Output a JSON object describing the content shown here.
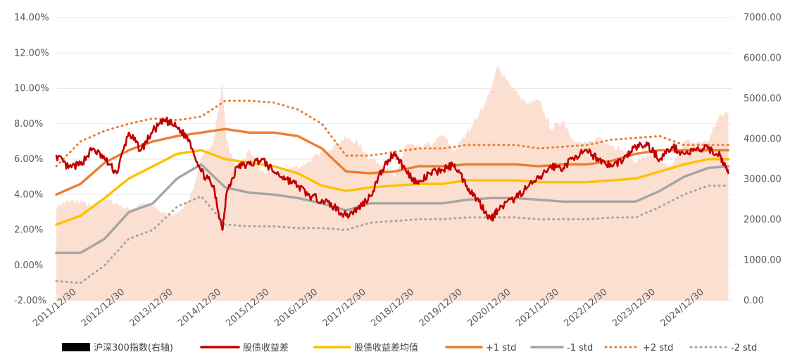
{
  "chart_data": {
    "type": "line",
    "title": "",
    "xlabel": "",
    "ylabel_left": "",
    "ylabel_right": "",
    "left_axis": {
      "ticks": [
        "14.00%",
        "12.00%",
        "10.00%",
        "8.00%",
        "6.00%",
        "4.00%",
        "2.00%",
        "0.00%",
        "-2.00%"
      ],
      "ylim": [
        -2,
        14
      ]
    },
    "right_axis": {
      "ticks": [
        "7000.00",
        "6000.00",
        "5000.00",
        "4000.00",
        "3000.00",
        "2000.00",
        "1000.00",
        "0.00"
      ],
      "ylim": [
        0,
        7000
      ]
    },
    "x_ticks": [
      "2011/12/30",
      "2012/12/30",
      "2013/12/30",
      "2014/12/30",
      "2015/12/30",
      "2016/12/30",
      "2017/12/30",
      "2018/12/30",
      "2019/12/30",
      "2020/12/30",
      "2021/12/30",
      "2022/12/30",
      "2023/12/30",
      "2024/12/30"
    ],
    "x_range": [
      "2011/12/30",
      "2025/12/30"
    ],
    "grid": true,
    "legend_position": "bottom",
    "colors": {
      "index_area": "#fbe0d2",
      "spread": "#c00000",
      "mean": "#ffc000",
      "plus1": "#ed7d31",
      "minus1": "#a5a5a5",
      "plus2": "#ed7d31",
      "minus2": "#a5a5a5",
      "grid": "#e8e8e8"
    },
    "series": [
      {
        "name": "沪深300指数(右轴)",
        "key": "index",
        "axis": "right",
        "style": "area",
        "x": [
          "2011/12/30",
          "2012/03/30",
          "2012/06/30",
          "2012/09/30",
          "2012/12/30",
          "2013/03/30",
          "2013/06/30",
          "2013/09/30",
          "2013/12/30",
          "2014/03/30",
          "2014/06/30",
          "2014/09/30",
          "2014/12/30",
          "2015/03/30",
          "2015/06/08",
          "2015/07/08",
          "2015/09/30",
          "2015/12/30",
          "2016/03/30",
          "2016/06/30",
          "2016/09/30",
          "2016/12/30",
          "2017/03/30",
          "2017/06/30",
          "2017/09/30",
          "2017/12/30",
          "2018/03/30",
          "2018/06/30",
          "2018/09/30",
          "2018/12/30",
          "2019/03/30",
          "2019/06/30",
          "2019/09/30",
          "2019/12/30",
          "2020/03/30",
          "2020/06/30",
          "2020/09/30",
          "2020/12/30",
          "2021/02/18",
          "2021/06/30",
          "2021/09/30",
          "2021/12/30",
          "2022/03/30",
          "2022/06/30",
          "2022/09/30",
          "2022/12/30",
          "2023/03/30",
          "2023/06/30",
          "2023/09/30",
          "2023/12/30",
          "2024/03/30",
          "2024/06/30",
          "2024/09/30",
          "2024/12/30",
          "2025/03/30",
          "2025/06/30",
          "2025/09/30",
          "2025/11/30"
        ],
        "values": [
          2340,
          2450,
          2460,
          2300,
          2520,
          2400,
          2250,
          2400,
          2330,
          2150,
          2170,
          2440,
          3530,
          3880,
          5360,
          4000,
          3200,
          3730,
          3200,
          3150,
          3250,
          3310,
          3450,
          3660,
          3840,
          4030,
          3900,
          3500,
          3400,
          3010,
          3850,
          3800,
          3850,
          4100,
          3700,
          4160,
          4600,
          5210,
          5800,
          5200,
          4850,
          4940,
          4250,
          4450,
          3900,
          3870,
          4050,
          3850,
          3700,
          3430,
          3600,
          3450,
          3300,
          3930,
          3900,
          3950,
          4600,
          4650
        ]
      },
      {
        "name": "股债收益差",
        "key": "spread",
        "axis": "left",
        "style": "solid-rough",
        "x": [
          "2011/12/30",
          "2012/03/30",
          "2012/06/30",
          "2012/09/30",
          "2012/12/30",
          "2013/03/30",
          "2013/06/30",
          "2013/09/30",
          "2013/12/30",
          "2014/03/30",
          "2014/06/30",
          "2014/09/30",
          "2014/12/30",
          "2015/03/30",
          "2015/06/08",
          "2015/07/08",
          "2015/09/30",
          "2015/12/30",
          "2016/03/30",
          "2016/06/30",
          "2016/09/30",
          "2016/12/30",
          "2017/03/30",
          "2017/06/30",
          "2017/09/30",
          "2017/12/30",
          "2018/03/30",
          "2018/06/30",
          "2018/09/30",
          "2018/12/30",
          "2019/03/30",
          "2019/06/30",
          "2019/09/30",
          "2019/12/30",
          "2020/03/30",
          "2020/06/30",
          "2020/09/30",
          "2020/12/30",
          "2021/02/18",
          "2021/06/30",
          "2021/09/30",
          "2021/12/30",
          "2022/03/30",
          "2022/06/30",
          "2022/09/30",
          "2022/12/30",
          "2023/03/30",
          "2023/06/30",
          "2023/09/30",
          "2023/12/30",
          "2024/03/30",
          "2024/06/30",
          "2024/09/30",
          "2024/12/30",
          "2025/03/30",
          "2025/06/30",
          "2025/09/30",
          "2025/11/30"
        ],
        "values": [
          6.2,
          5.5,
          5.7,
          6.6,
          6.0,
          5.2,
          7.5,
          6.5,
          7.6,
          8.2,
          7.8,
          7.1,
          5.3,
          4.5,
          2.0,
          4.0,
          5.6,
          5.7,
          6.0,
          5.3,
          4.9,
          4.5,
          3.9,
          3.7,
          3.3,
          2.8,
          3.2,
          3.9,
          5.4,
          6.4,
          5.3,
          4.6,
          5.2,
          5.4,
          5.7,
          4.5,
          3.6,
          2.6,
          3.1,
          3.8,
          4.4,
          4.9,
          5.6,
          5.5,
          6.2,
          6.4,
          6.0,
          5.6,
          6.0,
          6.7,
          6.8,
          6.0,
          6.7,
          6.3,
          6.5,
          6.6,
          6.2,
          5.2
        ]
      },
      {
        "name": "股债收益差均值",
        "key": "mean",
        "axis": "left",
        "style": "solid",
        "x": [
          "2011/12/30",
          "2012/06/30",
          "2012/12/30",
          "2013/06/30",
          "2013/12/30",
          "2014/06/30",
          "2014/12/30",
          "2015/06/30",
          "2015/12/30",
          "2016/06/30",
          "2016/12/30",
          "2017/06/30",
          "2017/12/30",
          "2018/06/30",
          "2018/12/30",
          "2019/06/30",
          "2019/12/30",
          "2020/06/30",
          "2020/12/30",
          "2021/06/30",
          "2021/12/30",
          "2022/06/30",
          "2022/12/30",
          "2023/06/30",
          "2023/12/30",
          "2024/06/30",
          "2024/12/30",
          "2025/06/30",
          "2025/11/30"
        ],
        "values": [
          2.3,
          2.8,
          3.8,
          4.9,
          5.6,
          6.3,
          6.5,
          6.0,
          5.8,
          5.6,
          5.2,
          4.5,
          4.2,
          4.4,
          4.5,
          4.6,
          4.6,
          4.8,
          4.8,
          4.8,
          4.7,
          4.7,
          4.7,
          4.8,
          4.9,
          5.3,
          5.7,
          6.0,
          6.0
        ]
      },
      {
        "name": "+1 std",
        "key": "plus1",
        "axis": "left",
        "style": "solid",
        "x": [
          "2011/12/30",
          "2012/06/30",
          "2012/12/30",
          "2013/06/30",
          "2013/12/30",
          "2014/06/30",
          "2014/12/30",
          "2015/06/30",
          "2015/12/30",
          "2016/06/30",
          "2016/12/30",
          "2017/06/30",
          "2017/12/30",
          "2018/06/30",
          "2018/12/30",
          "2019/06/30",
          "2019/12/30",
          "2020/06/30",
          "2020/12/30",
          "2021/06/30",
          "2021/12/30",
          "2022/06/30",
          "2022/12/30",
          "2023/06/30",
          "2023/12/30",
          "2024/06/30",
          "2024/12/30",
          "2025/06/30",
          "2025/11/30"
        ],
        "values": [
          4.0,
          4.6,
          5.8,
          6.5,
          7.0,
          7.3,
          7.5,
          7.7,
          7.5,
          7.5,
          7.3,
          6.6,
          5.3,
          5.2,
          5.3,
          5.6,
          5.6,
          5.7,
          5.7,
          5.7,
          5.6,
          5.7,
          5.7,
          5.9,
          6.3,
          6.5,
          6.5,
          6.5,
          6.5
        ]
      },
      {
        "name": "-1 std",
        "key": "minus1",
        "axis": "left",
        "style": "solid",
        "x": [
          "2011/12/30",
          "2012/06/30",
          "2012/12/30",
          "2013/06/30",
          "2013/12/30",
          "2014/06/30",
          "2014/12/30",
          "2015/06/30",
          "2015/12/30",
          "2016/06/30",
          "2016/12/30",
          "2017/06/30",
          "2017/12/30",
          "2018/06/30",
          "2018/12/30",
          "2019/06/30",
          "2019/12/30",
          "2020/06/30",
          "2020/12/30",
          "2021/06/30",
          "2021/12/30",
          "2022/06/30",
          "2022/12/30",
          "2023/06/30",
          "2023/12/30",
          "2024/06/30",
          "2024/12/30",
          "2025/06/30",
          "2025/11/30"
        ],
        "values": [
          0.7,
          0.7,
          1.5,
          3.0,
          3.5,
          4.9,
          5.7,
          4.4,
          4.1,
          4.0,
          3.8,
          3.5,
          3.1,
          3.5,
          3.5,
          3.5,
          3.5,
          3.7,
          3.8,
          3.8,
          3.7,
          3.6,
          3.6,
          3.6,
          3.6,
          4.2,
          5.0,
          5.5,
          5.6
        ]
      },
      {
        "name": "+2 std",
        "key": "plus2",
        "axis": "left",
        "style": "dotted",
        "x": [
          "2011/12/30",
          "2012/06/30",
          "2012/12/30",
          "2013/06/30",
          "2013/12/30",
          "2014/06/30",
          "2014/12/30",
          "2015/06/30",
          "2015/12/30",
          "2016/06/30",
          "2016/12/30",
          "2017/06/30",
          "2017/12/30",
          "2018/06/30",
          "2018/12/30",
          "2019/06/30",
          "2019/12/30",
          "2020/06/30",
          "2020/12/30",
          "2021/06/30",
          "2021/12/30",
          "2022/06/30",
          "2022/12/30",
          "2023/06/30",
          "2023/12/30",
          "2024/06/30",
          "2024/12/30",
          "2025/06/30",
          "2025/11/30"
        ],
        "values": [
          5.6,
          7.0,
          7.6,
          8.0,
          8.3,
          8.2,
          8.4,
          9.3,
          9.3,
          9.2,
          8.8,
          8.0,
          6.2,
          6.2,
          6.4,
          6.6,
          6.6,
          6.8,
          6.8,
          6.8,
          6.6,
          6.7,
          6.8,
          7.1,
          7.2,
          7.3,
          6.8,
          6.8,
          6.8
        ]
      },
      {
        "name": "-2 std",
        "key": "minus2",
        "axis": "left",
        "style": "dotted",
        "x": [
          "2011/12/30",
          "2012/06/30",
          "2012/12/30",
          "2013/06/30",
          "2013/12/30",
          "2014/06/30",
          "2014/12/30",
          "2015/06/30",
          "2015/12/30",
          "2016/06/30",
          "2016/12/30",
          "2017/06/30",
          "2017/12/30",
          "2018/06/30",
          "2018/12/30",
          "2019/06/30",
          "2019/12/30",
          "2020/06/30",
          "2020/12/30",
          "2021/06/30",
          "2021/12/30",
          "2022/06/30",
          "2022/12/30",
          "2023/06/30",
          "2023/12/30",
          "2024/06/30",
          "2024/12/30",
          "2025/06/30",
          "2025/11/30"
        ],
        "values": [
          -0.9,
          -1.0,
          0.0,
          1.5,
          2.0,
          3.3,
          3.9,
          2.3,
          2.2,
          2.2,
          2.1,
          2.1,
          2.0,
          2.4,
          2.5,
          2.6,
          2.6,
          2.7,
          2.7,
          2.7,
          2.6,
          2.6,
          2.6,
          2.7,
          2.7,
          3.3,
          4.0,
          4.5,
          4.5
        ]
      }
    ]
  }
}
